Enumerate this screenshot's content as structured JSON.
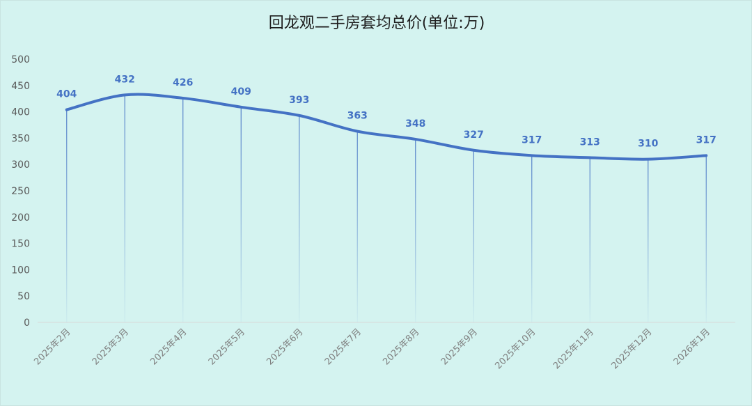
{
  "chart_data": {
    "type": "line",
    "title": "回龙观二手房套均总价(单位:万)",
    "categories": [
      "2025年2月",
      "2025年3月",
      "2025年4月",
      "2025年5月",
      "2025年6月",
      "2025年7月",
      "2025年8月",
      "2025年9月",
      "2025年10月",
      "2025年11月",
      "2025年12月",
      "2026年1月"
    ],
    "series": [
      {
        "values": [
          404,
          432,
          426,
          409,
          393,
          363,
          348,
          327,
          317,
          313,
          310,
          317
        ]
      }
    ],
    "ylim": [
      0,
      500
    ],
    "yticks": [
      0,
      50,
      100,
      150,
      200,
      250,
      300,
      350,
      400,
      450,
      500
    ],
    "smooth": true,
    "drop_lines": true,
    "data_labels": true,
    "grid": false,
    "legend": "none",
    "colors": {
      "line": "#4472c4",
      "background": "#d4f3f0",
      "label": "#4472c4",
      "axis": "#d9d9d9"
    }
  }
}
